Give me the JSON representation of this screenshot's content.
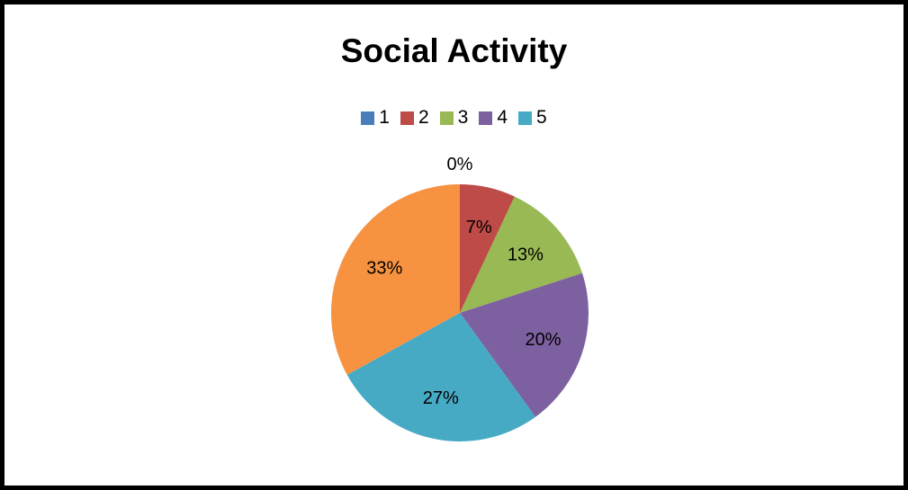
{
  "chart_data": {
    "type": "pie",
    "title": "Social Activity",
    "legend_position": "top",
    "start_angle": "12 o'clock, clockwise",
    "slices": [
      {
        "label": "1",
        "value": 0,
        "percent_label": "0%",
        "color": "#4A7EBB"
      },
      {
        "label": "2",
        "value": 7,
        "percent_label": "7%",
        "color": "#BE4B48"
      },
      {
        "label": "3",
        "value": 13,
        "percent_label": "13%",
        "color": "#98B954"
      },
      {
        "label": "4",
        "value": 20,
        "percent_label": "20%",
        "color": "#7D60A0"
      },
      {
        "label": "5",
        "value": 27,
        "percent_label": "27%",
        "color": "#46AAC5"
      },
      {
        "label": "",
        "value": 33,
        "percent_label": "33%",
        "color": "#F69240"
      }
    ]
  }
}
